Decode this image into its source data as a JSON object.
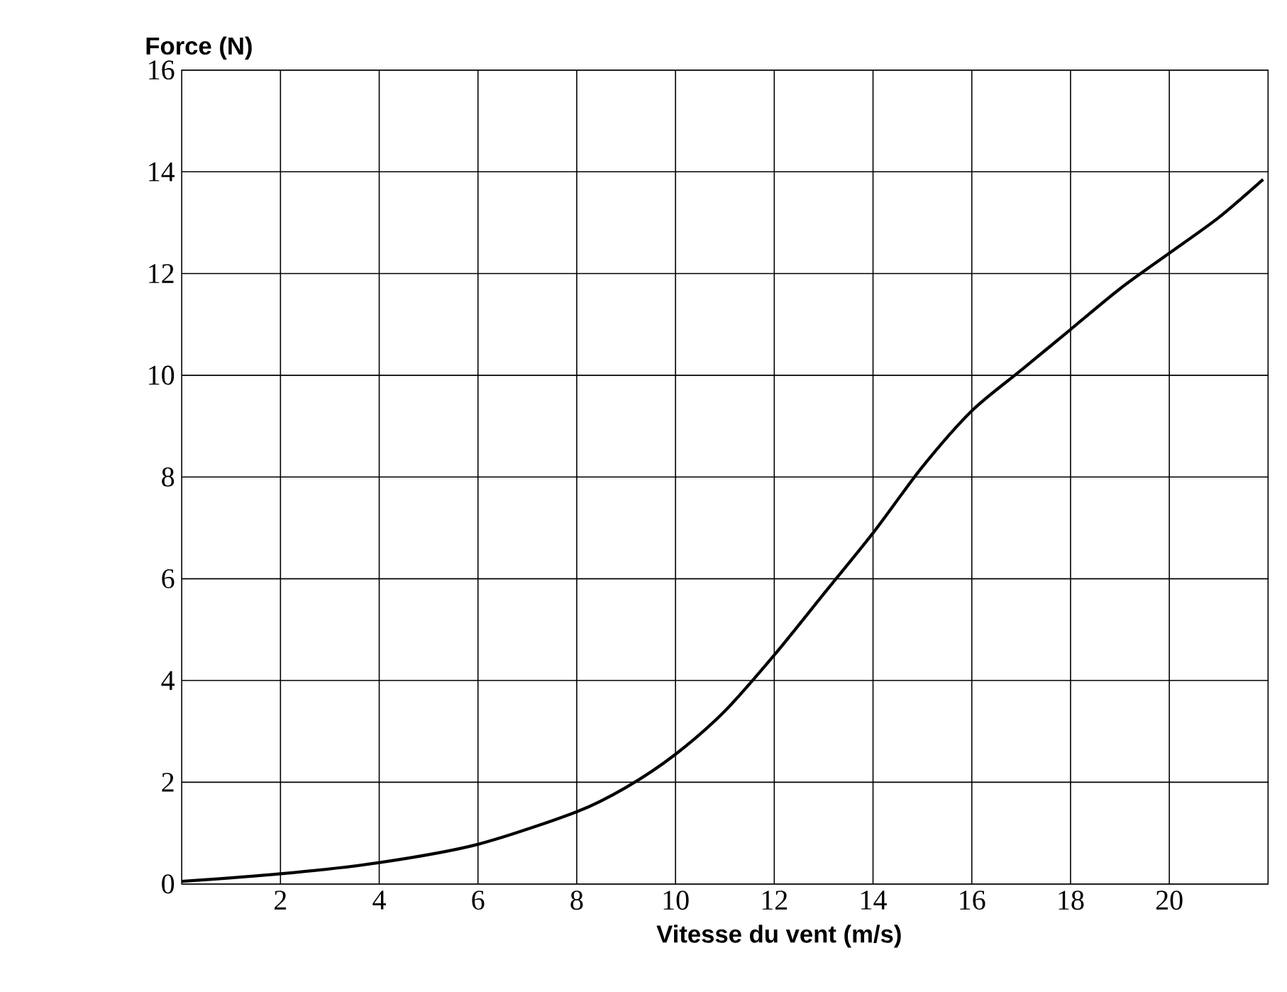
{
  "chart_data": {
    "type": "line",
    "xlabel": "Vitesse du vent (m/s)",
    "ylabel": "Force (N)",
    "x": [
      0,
      2,
      4,
      6,
      8,
      9,
      10,
      11,
      12,
      13,
      14,
      15,
      16,
      17,
      18,
      19,
      20,
      21,
      21.9
    ],
    "series": [
      {
        "color": "#000000",
        "values": [
          0.05,
          0.2,
          0.42,
          0.78,
          1.42,
          1.9,
          2.55,
          3.4,
          4.5,
          5.7,
          6.9,
          8.2,
          9.3,
          10.1,
          10.9,
          11.7,
          12.4,
          13.1,
          13.85
        ]
      }
    ],
    "xlim": [
      0,
      22
    ],
    "ylim": [
      0,
      16
    ],
    "xticks": [
      2,
      4,
      6,
      8,
      10,
      12,
      14,
      16,
      18,
      20
    ],
    "yticks": [
      0,
      2,
      4,
      6,
      8,
      10,
      12,
      14,
      16
    ],
    "grid": true,
    "marker": "none",
    "line_style": "solid"
  }
}
